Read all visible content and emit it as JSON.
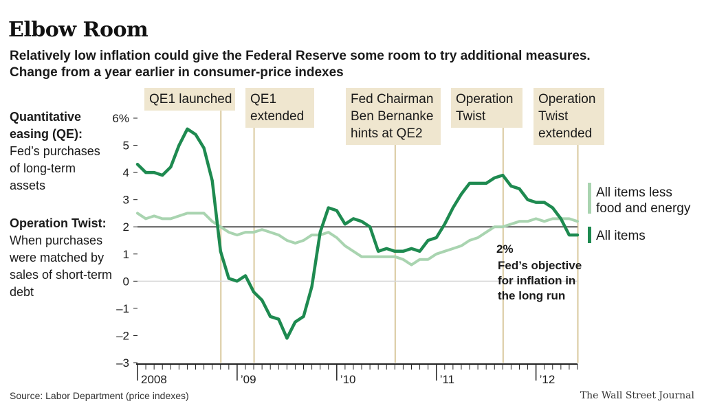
{
  "header": {
    "title": "Elbow Room",
    "subtitle_line1": "Relatively low inflation could give the Federal Reserve some room to try additional measures.",
    "subtitle_line2": "Change from a year earlier in consumer-price indexes"
  },
  "sidebar": {
    "qe_term": "Quantitative easing (QE):",
    "qe_def": "Fed’s purchases of long-term assets",
    "twist_term": "Operation Twist:",
    "twist_def": "When purchases were matched by sales of short-term debt"
  },
  "footer": {
    "source": "Source: Labor Department (price indexes)",
    "credit": "The Wall Street Journal"
  },
  "colors": {
    "all_items": "#1e8a50",
    "core": "#a9d4b0",
    "annotation_bg": "#efe6cf",
    "annotation_line": "#d9c99e",
    "target_line": "#555555"
  },
  "chart_data": {
    "type": "line",
    "ylim": [
      -3,
      6.3
    ],
    "y_ticks": [
      "6%",
      "5",
      "4",
      "3",
      "2",
      "1",
      "0",
      "–1",
      "–2",
      "–3"
    ],
    "x_tick_labels": [
      "2008",
      "’09",
      "’10",
      "’11",
      "’12"
    ],
    "x": [
      "2008-01",
      "2008-02",
      "2008-03",
      "2008-04",
      "2008-05",
      "2008-06",
      "2008-07",
      "2008-08",
      "2008-09",
      "2008-10",
      "2008-11",
      "2008-12",
      "2009-01",
      "2009-02",
      "2009-03",
      "2009-04",
      "2009-05",
      "2009-06",
      "2009-07",
      "2009-08",
      "2009-09",
      "2009-10",
      "2009-11",
      "2009-12",
      "2010-01",
      "2010-02",
      "2010-03",
      "2010-04",
      "2010-05",
      "2010-06",
      "2010-07",
      "2010-08",
      "2010-09",
      "2010-10",
      "2010-11",
      "2010-12",
      "2011-01",
      "2011-02",
      "2011-03",
      "2011-04",
      "2011-05",
      "2011-06",
      "2011-07",
      "2011-08",
      "2011-09",
      "2011-10",
      "2011-11",
      "2011-12",
      "2012-01",
      "2012-02",
      "2012-03",
      "2012-04",
      "2012-05",
      "2012-06"
    ],
    "series": [
      {
        "name": "All items",
        "values": [
          4.3,
          4.0,
          4.0,
          3.9,
          4.2,
          5.0,
          5.6,
          5.4,
          4.9,
          3.7,
          1.1,
          0.1,
          0.0,
          0.2,
          -0.4,
          -0.7,
          -1.3,
          -1.4,
          -2.1,
          -1.5,
          -1.3,
          -0.2,
          1.8,
          2.7,
          2.6,
          2.1,
          2.3,
          2.2,
          2.0,
          1.1,
          1.2,
          1.1,
          1.1,
          1.2,
          1.1,
          1.5,
          1.6,
          2.1,
          2.7,
          3.2,
          3.6,
          3.6,
          3.6,
          3.8,
          3.9,
          3.5,
          3.4,
          3.0,
          2.9,
          2.9,
          2.7,
          2.3,
          1.7,
          1.7
        ]
      },
      {
        "name": "All items less food and energy",
        "values": [
          2.5,
          2.3,
          2.4,
          2.3,
          2.3,
          2.4,
          2.5,
          2.5,
          2.5,
          2.2,
          2.0,
          1.8,
          1.7,
          1.8,
          1.8,
          1.9,
          1.8,
          1.7,
          1.5,
          1.4,
          1.5,
          1.7,
          1.7,
          1.8,
          1.6,
          1.3,
          1.1,
          0.9,
          0.9,
          0.9,
          0.9,
          0.9,
          0.8,
          0.6,
          0.8,
          0.8,
          1.0,
          1.1,
          1.2,
          1.3,
          1.5,
          1.6,
          1.8,
          2.0,
          2.0,
          2.1,
          2.2,
          2.2,
          2.3,
          2.2,
          2.3,
          2.3,
          2.3,
          2.2
        ]
      }
    ],
    "reference_line": {
      "value": 2,
      "label": "2%",
      "caption_line1": "Fed’s objective",
      "caption_line2": "for inflation in",
      "caption_line3": "the long run"
    },
    "annotations": [
      {
        "date": "2008-11",
        "label_lines": [
          "QE1 launched"
        ]
      },
      {
        "date": "2009-03",
        "label_lines": [
          "QE1",
          "extended"
        ]
      },
      {
        "date": "2010-08",
        "label_lines": [
          "Fed Chairman",
          "Ben Bernanke",
          "hints at QE2"
        ]
      },
      {
        "date": "2011-09",
        "label_lines": [
          "Operation",
          "Twist"
        ]
      },
      {
        "date": "2012-06",
        "label_lines": [
          "Operation",
          "Twist",
          "extended"
        ]
      }
    ],
    "legend": [
      "All items less food and energy",
      "All items"
    ],
    "legend_position": "right",
    "grid": false
  }
}
